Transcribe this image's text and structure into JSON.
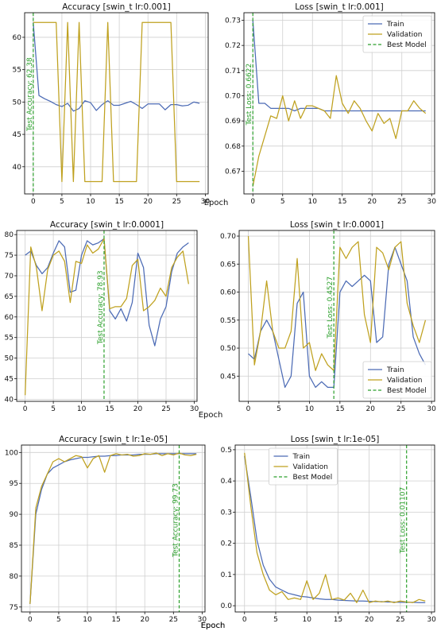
{
  "colors": {
    "train": "#4c6bb5",
    "validation": "#bfa11f",
    "best": "#2ca02c"
  },
  "chart_data": [
    {
      "type": "line",
      "title": "Accuracy [swin_t lr:0.001]",
      "xlabel": "Epoch",
      "xlim": [
        -1.5,
        30.5
      ],
      "ylim": [
        35.8,
        63.8
      ],
      "xticks": [
        0,
        5,
        10,
        15,
        20,
        25,
        30
      ],
      "yticks": [
        40,
        45,
        50,
        55,
        60
      ],
      "x": [
        0,
        1,
        2,
        3,
        4,
        5,
        6,
        7,
        8,
        9,
        10,
        11,
        12,
        13,
        14,
        15,
        16,
        17,
        18,
        19,
        20,
        21,
        22,
        23,
        24,
        25,
        26,
        27,
        28,
        29
      ],
      "series": [
        {
          "name": "",
          "values": [
            62.3,
            51.0,
            50.5,
            50.1,
            49.6,
            49.3,
            49.8,
            48.6,
            49.0,
            50.2,
            49.9,
            48.7,
            49.6,
            50.2,
            49.5,
            49.5,
            49.8,
            50.1,
            49.6,
            49.0,
            49.7,
            49.7,
            49.7,
            48.8,
            49.6,
            49.6,
            49.4,
            49.5,
            50.0,
            49.8
          ]
        },
        {
          "name": "",
          "values": [
            62.3,
            62.3,
            62.3,
            62.3,
            62.3,
            37.7,
            62.3,
            37.7,
            62.3,
            37.7,
            37.7,
            37.7,
            37.7,
            62.3,
            37.7,
            37.7,
            37.7,
            37.7,
            37.7,
            62.3,
            62.3,
            62.3,
            62.3,
            62.3,
            62.3,
            37.7,
            37.7,
            37.7,
            37.7,
            37.7
          ]
        }
      ],
      "best_epoch": 0,
      "annotation": "Test Accuracy: 62.38",
      "legend": false
    },
    {
      "type": "line",
      "title": "Loss [swin_t lr:0.001]",
      "xlabel": "",
      "xlim": [
        -1.5,
        30.5
      ],
      "ylim": [
        0.661,
        0.733
      ],
      "xticks": [
        0,
        5,
        10,
        15,
        20,
        25,
        30
      ],
      "yticks": [
        0.67,
        0.68,
        0.69,
        0.7,
        0.71,
        0.72,
        0.73
      ],
      "x": [
        0,
        1,
        2,
        3,
        4,
        5,
        6,
        7,
        8,
        9,
        10,
        11,
        12,
        13,
        14,
        15,
        16,
        17,
        18,
        19,
        20,
        21,
        22,
        23,
        24,
        25,
        26,
        27,
        28,
        29
      ],
      "series": [
        {
          "name": "Train",
          "values": [
            0.73,
            0.697,
            0.697,
            0.695,
            0.695,
            0.695,
            0.695,
            0.694,
            0.695,
            0.695,
            0.695,
            0.695,
            0.694,
            0.694,
            0.694,
            0.694,
            0.694,
            0.694,
            0.694,
            0.694,
            0.694,
            0.694,
            0.694,
            0.694,
            0.694,
            0.694,
            0.694,
            0.694,
            0.694,
            0.694
          ]
        },
        {
          "name": "Validation",
          "values": [
            0.664,
            0.676,
            0.684,
            0.692,
            0.691,
            0.7,
            0.69,
            0.698,
            0.691,
            0.696,
            0.696,
            0.695,
            0.694,
            0.691,
            0.708,
            0.697,
            0.693,
            0.698,
            0.695,
            0.69,
            0.686,
            0.693,
            0.689,
            0.691,
            0.683,
            0.694,
            0.694,
            0.698,
            0.695,
            0.693
          ]
        }
      ],
      "best_epoch": 0,
      "annotation": "Test Loss: 0.6622",
      "legend": true,
      "legend_position": "upper-right",
      "legend_labels": [
        "Train",
        "Validation",
        "Best Model"
      ]
    },
    {
      "type": "line",
      "title": "Accuracy [swin_t lr:0.0001]",
      "xlabel": "Epoch",
      "xlim": [
        -1.5,
        30.5
      ],
      "ylim": [
        39.5,
        81
      ],
      "xticks": [
        0,
        5,
        10,
        15,
        20,
        25,
        30
      ],
      "yticks": [
        40,
        45,
        50,
        55,
        60,
        65,
        70,
        75,
        80
      ],
      "x": [
        0,
        1,
        2,
        3,
        4,
        5,
        6,
        7,
        8,
        9,
        10,
        11,
        12,
        13,
        14,
        15,
        16,
        17,
        18,
        19,
        20,
        21,
        22,
        23,
        24,
        25,
        26,
        27,
        28,
        29
      ],
      "series": [
        {
          "name": "",
          "values": [
            75.0,
            76.0,
            72.5,
            70.5,
            72.0,
            75.5,
            78.5,
            77.0,
            66.0,
            66.5,
            75.0,
            78.5,
            77.5,
            78.0,
            79.0,
            61.5,
            59.5,
            62.0,
            59.0,
            63.5,
            75.5,
            72.0,
            58.0,
            53.0,
            59.5,
            62.5,
            71.0,
            75.5,
            77.0,
            78.0
          ]
        },
        {
          "name": "",
          "values": [
            41.0,
            77.0,
            72.0,
            61.5,
            71.5,
            75.0,
            76.0,
            73.5,
            63.5,
            73.5,
            73.0,
            77.5,
            75.5,
            76.5,
            79.0,
            62.0,
            62.5,
            62.5,
            64.5,
            72.5,
            74.0,
            61.5,
            62.5,
            64.0,
            67.0,
            65.0,
            72.0,
            74.5,
            76.0,
            68.0
          ]
        }
      ],
      "best_epoch": 14,
      "annotation": "Test Accuracy: 78.93",
      "legend": false
    },
    {
      "type": "line",
      "title": "Loss [swin_t lr:0.0001]",
      "xlabel": "",
      "xlim": [
        -1.5,
        30.5
      ],
      "ylim": [
        0.405,
        0.71
      ],
      "xticks": [
        0,
        5,
        10,
        15,
        20,
        25,
        30
      ],
      "yticks": [
        0.45,
        0.5,
        0.55,
        0.6,
        0.65,
        0.7
      ],
      "x": [
        0,
        1,
        2,
        3,
        4,
        5,
        6,
        7,
        8,
        9,
        10,
        11,
        12,
        13,
        14,
        15,
        16,
        17,
        18,
        19,
        20,
        21,
        22,
        23,
        24,
        25,
        26,
        27,
        28,
        29
      ],
      "series": [
        {
          "name": "Train",
          "values": [
            0.49,
            0.48,
            0.53,
            0.55,
            0.53,
            0.48,
            0.43,
            0.45,
            0.58,
            0.6,
            0.45,
            0.43,
            0.44,
            0.43,
            0.43,
            0.6,
            0.62,
            0.61,
            0.62,
            0.63,
            0.62,
            0.51,
            0.52,
            0.65,
            0.68,
            0.65,
            0.62,
            0.52,
            0.49,
            0.47
          ]
        },
        {
          "name": "Validation",
          "values": [
            0.7,
            0.47,
            0.53,
            0.62,
            0.53,
            0.5,
            0.5,
            0.53,
            0.66,
            0.5,
            0.51,
            0.46,
            0.49,
            0.47,
            0.46,
            0.68,
            0.66,
            0.68,
            0.69,
            0.56,
            0.51,
            0.68,
            0.67,
            0.64,
            0.68,
            0.69,
            0.58,
            0.54,
            0.51,
            0.55
          ]
        }
      ],
      "best_epoch": 14,
      "annotation": "Test Loss: 0.4527",
      "legend": true,
      "legend_position": "lower-right",
      "legend_labels": [
        "Train",
        "Validation",
        "Best Model"
      ]
    },
    {
      "type": "line",
      "title": "Accuracy [swin_t lr:1e-05]",
      "xlabel": "Epoch",
      "xlim": [
        -1.5,
        30.5
      ],
      "ylim": [
        74.2,
        101.2
      ],
      "xticks": [
        0,
        5,
        10,
        15,
        20,
        25,
        30
      ],
      "yticks": [
        75,
        80,
        85,
        90,
        95,
        100
      ],
      "x": [
        0,
        1,
        2,
        3,
        4,
        5,
        6,
        7,
        8,
        9,
        10,
        11,
        12,
        13,
        14,
        15,
        16,
        17,
        18,
        19,
        20,
        21,
        22,
        23,
        24,
        25,
        26,
        27,
        28,
        29
      ],
      "series": [
        {
          "name": "",
          "values": [
            75.5,
            90.0,
            94.0,
            96.5,
            97.5,
            98.0,
            98.5,
            98.8,
            99.0,
            99.2,
            99.2,
            99.3,
            99.4,
            99.4,
            99.5,
            99.5,
            99.6,
            99.6,
            99.6,
            99.7,
            99.7,
            99.7,
            99.8,
            99.8,
            99.8,
            99.8,
            99.8,
            99.8,
            99.8,
            99.8
          ]
        },
        {
          "name": "",
          "values": [
            75.5,
            91.0,
            94.5,
            96.5,
            98.5,
            99.0,
            98.5,
            99.0,
            99.5,
            99.3,
            97.5,
            99.0,
            99.5,
            96.8,
            99.5,
            99.8,
            99.6,
            99.7,
            99.4,
            99.5,
            99.8,
            99.7,
            99.9,
            99.5,
            99.8,
            99.6,
            99.9,
            99.6,
            99.5,
            99.7
          ]
        }
      ],
      "best_epoch": 26,
      "annotation": "Test Accuracy: 99.73",
      "legend": false
    },
    {
      "type": "line",
      "title": "Loss [swin_t lr:1e-05]",
      "xlabel": "Epoch",
      "xlim": [
        -1.5,
        30.5
      ],
      "ylim": [
        -0.02,
        0.515
      ],
      "xticks": [
        0,
        5,
        10,
        15,
        20,
        25,
        30
      ],
      "yticks": [
        0.0,
        0.1,
        0.2,
        0.3,
        0.4,
        0.5
      ],
      "x": [
        0,
        1,
        2,
        3,
        4,
        5,
        6,
        7,
        8,
        9,
        10,
        11,
        12,
        13,
        14,
        15,
        16,
        17,
        18,
        19,
        20,
        21,
        22,
        23,
        24,
        25,
        26,
        27,
        28,
        29
      ],
      "series": [
        {
          "name": "Train",
          "values": [
            0.48,
            0.35,
            0.21,
            0.13,
            0.085,
            0.06,
            0.05,
            0.04,
            0.035,
            0.03,
            0.028,
            0.025,
            0.022,
            0.02,
            0.02,
            0.018,
            0.017,
            0.016,
            0.015,
            0.015,
            0.014,
            0.013,
            0.013,
            0.012,
            0.012,
            0.011,
            0.011,
            0.011,
            0.01,
            0.01
          ]
        },
        {
          "name": "Validation",
          "values": [
            0.49,
            0.32,
            0.17,
            0.1,
            0.05,
            0.035,
            0.045,
            0.02,
            0.025,
            0.02,
            0.08,
            0.02,
            0.04,
            0.1,
            0.02,
            0.025,
            0.018,
            0.04,
            0.01,
            0.05,
            0.01,
            0.015,
            0.012,
            0.015,
            0.01,
            0.015,
            0.012,
            0.01,
            0.02,
            0.015
          ]
        }
      ],
      "best_epoch": 26,
      "annotation": "Test Loss: 0.01107",
      "legend": true,
      "legend_position": "upper-center",
      "legend_labels": [
        "Train",
        "Validation",
        "Best Model"
      ]
    }
  ]
}
